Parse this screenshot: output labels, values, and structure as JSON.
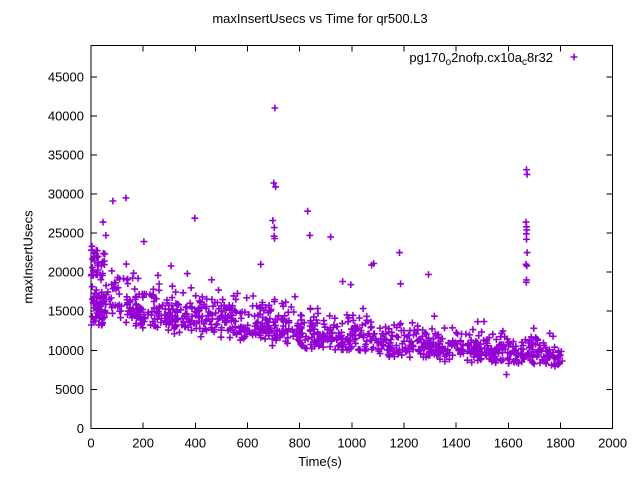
{
  "window": {
    "background": "#ffffff",
    "text_color": "#000000"
  },
  "chart_data": {
    "type": "scatter",
    "title": "maxInsertUsecs vs Time for qr500.L3",
    "xlabel": "Time(s)",
    "ylabel": "maxInsertUsecs",
    "xlim": [
      0,
      2000
    ],
    "ylim": [
      0,
      49000
    ],
    "xticks": [
      0,
      200,
      400,
      600,
      800,
      1000,
      1200,
      1400,
      1600,
      1800,
      2000
    ],
    "yticks": [
      0,
      5000,
      10000,
      15000,
      20000,
      25000,
      30000,
      35000,
      40000,
      45000
    ],
    "grid": false,
    "tick_style": "inward-mirrored",
    "legend": {
      "position": "top-right-inside",
      "parts": [
        {
          "text": "pg170",
          "subscript": false
        },
        {
          "text": "o",
          "subscript": true
        },
        {
          "text": "2nofp.cx10a",
          "subscript": false
        },
        {
          "text": "c",
          "subscript": true
        },
        {
          "text": "8r32",
          "subscript": false
        }
      ]
    },
    "series": [
      {
        "name": "pg170_o2nofp.cx10a_c8r32",
        "marker": "plus",
        "marker_size": 3.4,
        "marker_stroke": 1.6,
        "color": "#9400D3",
        "summary": "Dense decreasing band: ~13000-23000 usecs at t=0 falling to ~8000-11500 usecs at t=1800; data ends near t=1808; spike columns near t=705 (max 41000) and t=1670 (max 33100).",
        "outliers": [
          [
            4,
            23300
          ],
          [
            46,
            26400
          ],
          [
            57,
            24700
          ],
          [
            84,
            29100
          ],
          [
            134,
            29500
          ],
          [
            203,
            23900
          ],
          [
            398,
            26900
          ],
          [
            651,
            21000
          ],
          [
            697,
            26600
          ],
          [
            701,
            31400
          ],
          [
            702,
            24600
          ],
          [
            703,
            25700
          ],
          [
            704,
            24300
          ],
          [
            705,
            41000
          ],
          [
            708,
            30900
          ],
          [
            831,
            27800
          ],
          [
            839,
            24700
          ],
          [
            919,
            24500
          ],
          [
            965,
            18800
          ],
          [
            996,
            18400
          ],
          [
            1076,
            20900
          ],
          [
            1084,
            21100
          ],
          [
            1183,
            22500
          ],
          [
            1187,
            18500
          ],
          [
            1294,
            19700
          ],
          [
            1593,
            6900
          ],
          [
            1668,
            26400
          ],
          [
            1668,
            21000
          ],
          [
            1669,
            24900
          ],
          [
            1669,
            18700
          ],
          [
            1670,
            33100
          ],
          [
            1670,
            25800
          ],
          [
            1670,
            24200
          ],
          [
            1670,
            19000
          ],
          [
            1671,
            25400
          ],
          [
            1671,
            20800
          ],
          [
            1672,
            32500
          ],
          [
            1672,
            22500
          ]
        ],
        "cloud": {
          "seed": 11,
          "count": 1060,
          "t_max": 1808,
          "anchors_t": [
            0,
            100,
            300,
            600,
            900,
            1200,
            1500,
            1808
          ],
          "median": [
            16800,
            15800,
            14600,
            13200,
            11900,
            10800,
            9800,
            9300
          ],
          "down": [
            3400,
            2800,
            2600,
            2500,
            2300,
            2000,
            1700,
            1400
          ],
          "up": [
            5600,
            4900,
            4300,
            3800,
            3400,
            3000,
            2700,
            2500
          ],
          "spike_prob": 0.04,
          "spike_extra": 2600,
          "v_floor": 6700,
          "v_cap": 25200,
          "startup": {
            "count": 70,
            "t_max": 55,
            "v_min": 13200,
            "v_max": 22800
          }
        }
      }
    ]
  }
}
